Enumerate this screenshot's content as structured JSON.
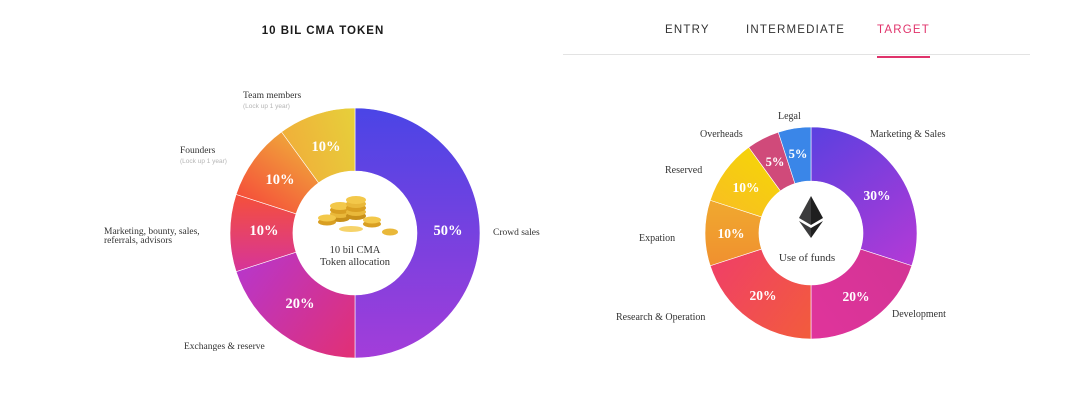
{
  "left_chart_title": "10 BIL CMA TOKEN",
  "tabs": [
    {
      "label": "ENTRY",
      "active": false
    },
    {
      "label": "INTERMEDIATE",
      "active": false
    },
    {
      "label": "TARGET",
      "active": true
    }
  ],
  "chart_data": [
    {
      "type": "pie",
      "donut": true,
      "title": "10 BIL CMA TOKEN",
      "center_label": [
        "10 bil CMA",
        "Token allocation"
      ],
      "center_image": "gold-coins",
      "slices": [
        {
          "name": "Crowd sales",
          "value": 50,
          "label": "50%",
          "color_start": "#4a45e6",
          "color_end": "#a33dd9"
        },
        {
          "name": "Exchanges & reserve",
          "value": 20,
          "label": "20%",
          "color_start": "#e23074",
          "color_end": "#b836c9"
        },
        {
          "name": "Marketing, bounty, sales, referrals, advisors",
          "value": 10,
          "label": "10%",
          "color_start": "#d6349a",
          "color_end": "#f5503a"
        },
        {
          "name": "Founders",
          "value": 10,
          "label": "10%",
          "color_start": "#f5503a",
          "color_end": "#f0a23a",
          "note": "(Lock up 1 year)"
        },
        {
          "name": "Team members",
          "value": 10,
          "label": "10%",
          "color_start": "#f0b03a",
          "color_end": "#e6d03a",
          "note": "(Lock up 1 year)"
        }
      ]
    },
    {
      "type": "pie",
      "donut": true,
      "center_label": [
        "Use of funds"
      ],
      "center_icon": "ethereum-icon",
      "slices": [
        {
          "name": "Marketing & Sales",
          "value": 30,
          "label": "30%",
          "color_start": "#5a40e0",
          "color_end": "#b33ad6"
        },
        {
          "name": "Development",
          "value": 20,
          "label": "20%",
          "color_start": "#d33495",
          "color_end": "#e0349b"
        },
        {
          "name": "Research & Operation",
          "value": 20,
          "label": "20%",
          "color_start": "#f25c3c",
          "color_end": "#f04066"
        },
        {
          "name": "Expation",
          "value": 10,
          "label": "10%",
          "color_start": "#f0902f",
          "color_end": "#f0a92f"
        },
        {
          "name": "Reserved",
          "value": 10,
          "label": "10%",
          "color_start": "#f8c020",
          "color_end": "#f5d30a"
        },
        {
          "name": "Overheads",
          "value": 5,
          "label": "5%",
          "color_start": "#d04a7a",
          "color_end": "#d04a7a"
        },
        {
          "name": "Legal",
          "value": 5,
          "label": "5%",
          "color_start": "#3a86e8",
          "color_end": "#3a86e8"
        }
      ]
    }
  ]
}
